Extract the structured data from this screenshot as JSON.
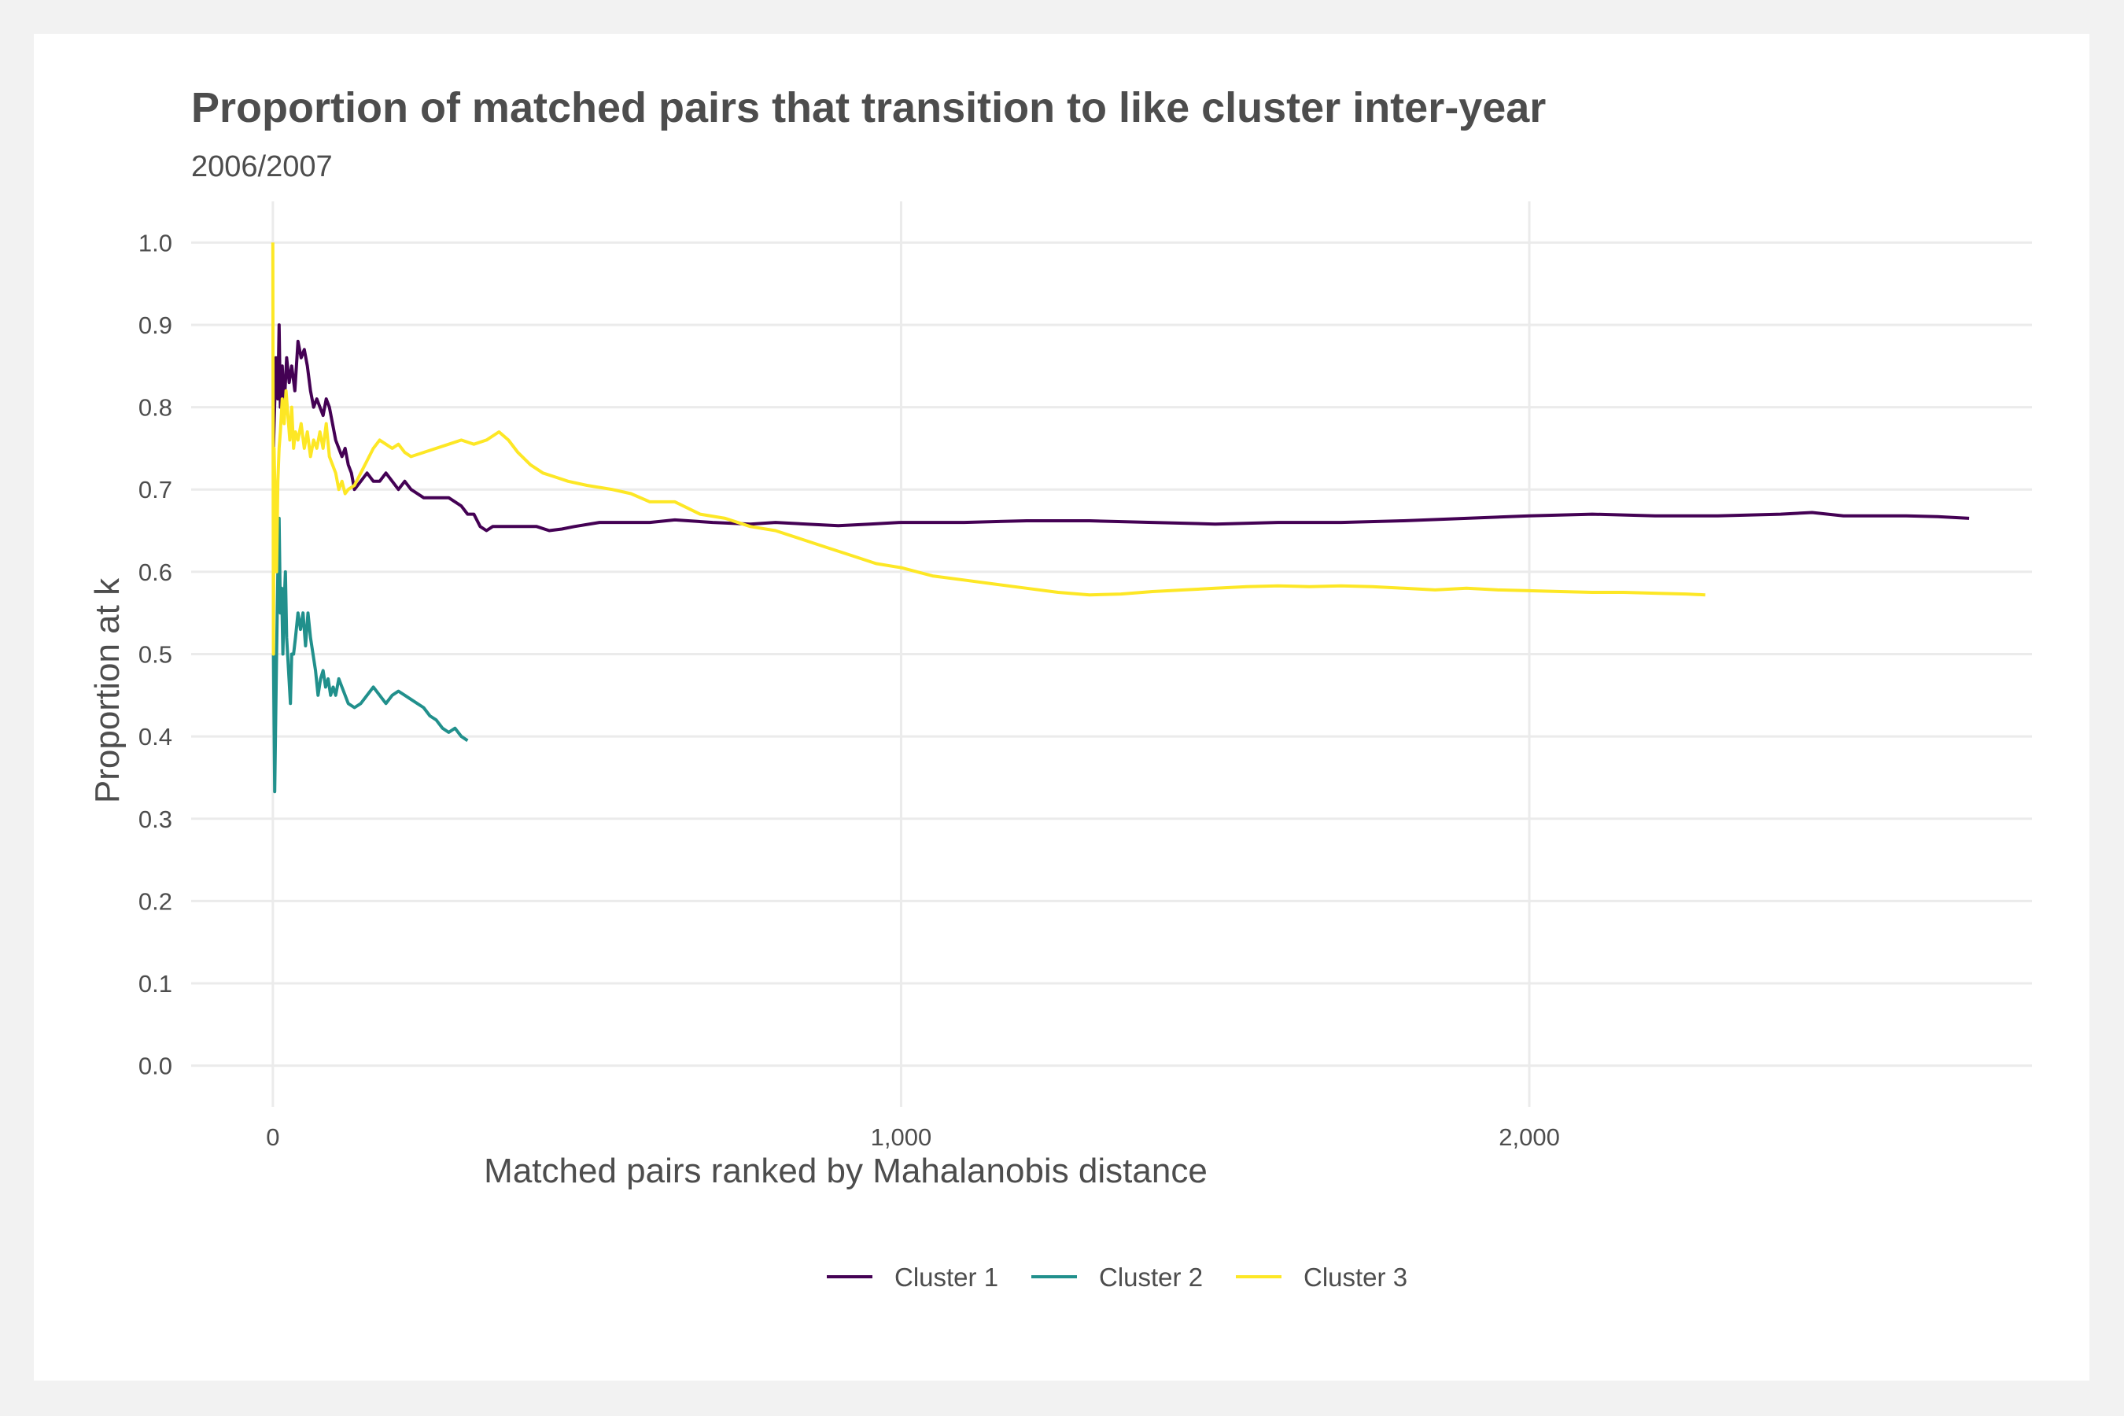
{
  "chart_data": {
    "type": "line",
    "title": "Proportion of matched pairs that transition to like cluster inter-year",
    "subtitle": "2006/2007",
    "xlabel": "Matched pairs ranked by Mahalanobis distance",
    "ylabel": "Proportion at k",
    "xlim": [
      -130,
      2800
    ],
    "ylim": [
      -0.05,
      1.05
    ],
    "x_ticks": [
      0,
      1000,
      2000
    ],
    "x_tick_labels": [
      "0",
      "1,000",
      "2,000"
    ],
    "y_ticks": [
      0.0,
      0.1,
      0.2,
      0.3,
      0.4,
      0.5,
      0.6,
      0.7,
      0.8,
      0.9,
      1.0
    ],
    "y_tick_labels": [
      "0.0",
      "0.1",
      "0.2",
      "0.3",
      "0.4",
      "0.5",
      "0.6",
      "0.7",
      "0.8",
      "0.9",
      "1.0"
    ],
    "grid": true,
    "legend_position": "bottom",
    "series": [
      {
        "name": "Cluster 1",
        "color": "#440154",
        "points": [
          [
            1,
            0.75
          ],
          [
            5,
            0.86
          ],
          [
            8,
            0.81
          ],
          [
            10,
            0.9
          ],
          [
            12,
            0.8
          ],
          [
            15,
            0.85
          ],
          [
            18,
            0.8
          ],
          [
            22,
            0.86
          ],
          [
            26,
            0.83
          ],
          [
            30,
            0.85
          ],
          [
            35,
            0.82
          ],
          [
            40,
            0.88
          ],
          [
            45,
            0.86
          ],
          [
            50,
            0.87
          ],
          [
            55,
            0.85
          ],
          [
            60,
            0.82
          ],
          [
            65,
            0.8
          ],
          [
            70,
            0.81
          ],
          [
            75,
            0.8
          ],
          [
            80,
            0.79
          ],
          [
            85,
            0.81
          ],
          [
            90,
            0.8
          ],
          [
            95,
            0.78
          ],
          [
            100,
            0.76
          ],
          [
            105,
            0.75
          ],
          [
            110,
            0.74
          ],
          [
            115,
            0.75
          ],
          [
            120,
            0.73
          ],
          [
            125,
            0.72
          ],
          [
            130,
            0.7
          ],
          [
            140,
            0.71
          ],
          [
            150,
            0.72
          ],
          [
            160,
            0.71
          ],
          [
            170,
            0.71
          ],
          [
            180,
            0.72
          ],
          [
            190,
            0.71
          ],
          [
            200,
            0.7
          ],
          [
            210,
            0.71
          ],
          [
            220,
            0.7
          ],
          [
            240,
            0.69
          ],
          [
            260,
            0.69
          ],
          [
            280,
            0.69
          ],
          [
            300,
            0.68
          ],
          [
            310,
            0.67
          ],
          [
            320,
            0.67
          ],
          [
            330,
            0.655
          ],
          [
            340,
            0.65
          ],
          [
            350,
            0.655
          ],
          [
            380,
            0.655
          ],
          [
            420,
            0.655
          ],
          [
            440,
            0.65
          ],
          [
            460,
            0.652
          ],
          [
            480,
            0.655
          ],
          [
            520,
            0.66
          ],
          [
            560,
            0.66
          ],
          [
            600,
            0.66
          ],
          [
            640,
            0.663
          ],
          [
            700,
            0.66
          ],
          [
            760,
            0.658
          ],
          [
            800,
            0.66
          ],
          [
            850,
            0.658
          ],
          [
            900,
            0.656
          ],
          [
            950,
            0.658
          ],
          [
            1000,
            0.66
          ],
          [
            1100,
            0.66
          ],
          [
            1200,
            0.662
          ],
          [
            1300,
            0.662
          ],
          [
            1400,
            0.66
          ],
          [
            1500,
            0.658
          ],
          [
            1600,
            0.66
          ],
          [
            1700,
            0.66
          ],
          [
            1800,
            0.662
          ],
          [
            1900,
            0.665
          ],
          [
            2000,
            0.668
          ],
          [
            2100,
            0.67
          ],
          [
            2200,
            0.668
          ],
          [
            2300,
            0.668
          ],
          [
            2400,
            0.67
          ],
          [
            2450,
            0.672
          ],
          [
            2500,
            0.668
          ],
          [
            2600,
            0.668
          ],
          [
            2650,
            0.667
          ],
          [
            2700,
            0.665
          ]
        ]
      },
      {
        "name": "Cluster 2",
        "color": "#21908C",
        "points": [
          [
            1,
            0.5
          ],
          [
            3,
            0.333
          ],
          [
            6,
            0.5
          ],
          [
            8,
            0.6
          ],
          [
            10,
            0.665
          ],
          [
            12,
            0.55
          ],
          [
            14,
            0.58
          ],
          [
            16,
            0.5
          ],
          [
            18,
            0.56
          ],
          [
            20,
            0.6
          ],
          [
            22,
            0.52
          ],
          [
            25,
            0.48
          ],
          [
            28,
            0.44
          ],
          [
            30,
            0.5
          ],
          [
            33,
            0.5
          ],
          [
            36,
            0.52
          ],
          [
            40,
            0.55
          ],
          [
            44,
            0.53
          ],
          [
            48,
            0.55
          ],
          [
            52,
            0.51
          ],
          [
            56,
            0.55
          ],
          [
            60,
            0.52
          ],
          [
            64,
            0.5
          ],
          [
            68,
            0.48
          ],
          [
            72,
            0.45
          ],
          [
            76,
            0.47
          ],
          [
            80,
            0.48
          ],
          [
            84,
            0.46
          ],
          [
            88,
            0.47
          ],
          [
            92,
            0.45
          ],
          [
            96,
            0.46
          ],
          [
            100,
            0.45
          ],
          [
            105,
            0.47
          ],
          [
            110,
            0.46
          ],
          [
            115,
            0.45
          ],
          [
            120,
            0.44
          ],
          [
            130,
            0.435
          ],
          [
            140,
            0.44
          ],
          [
            150,
            0.45
          ],
          [
            160,
            0.46
          ],
          [
            170,
            0.45
          ],
          [
            180,
            0.44
          ],
          [
            190,
            0.45
          ],
          [
            200,
            0.455
          ],
          [
            210,
            0.45
          ],
          [
            220,
            0.445
          ],
          [
            230,
            0.44
          ],
          [
            240,
            0.435
          ],
          [
            250,
            0.425
          ],
          [
            260,
            0.42
          ],
          [
            270,
            0.41
          ],
          [
            280,
            0.405
          ],
          [
            290,
            0.41
          ],
          [
            300,
            0.4
          ],
          [
            310,
            0.395
          ]
        ]
      },
      {
        "name": "Cluster 3",
        "color": "#FDE725",
        "points": [
          [
            0,
            1.0
          ],
          [
            1,
            0.5
          ],
          [
            2,
            0.75
          ],
          [
            4,
            0.67
          ],
          [
            6,
            0.6
          ],
          [
            8,
            0.71
          ],
          [
            10,
            0.75
          ],
          [
            12,
            0.77
          ],
          [
            15,
            0.81
          ],
          [
            18,
            0.78
          ],
          [
            21,
            0.82
          ],
          [
            24,
            0.79
          ],
          [
            27,
            0.76
          ],
          [
            30,
            0.8
          ],
          [
            33,
            0.75
          ],
          [
            36,
            0.77
          ],
          [
            40,
            0.76
          ],
          [
            45,
            0.78
          ],
          [
            50,
            0.75
          ],
          [
            55,
            0.77
          ],
          [
            60,
            0.74
          ],
          [
            65,
            0.76
          ],
          [
            70,
            0.75
          ],
          [
            75,
            0.77
          ],
          [
            80,
            0.75
          ],
          [
            85,
            0.78
          ],
          [
            90,
            0.74
          ],
          [
            95,
            0.73
          ],
          [
            100,
            0.72
          ],
          [
            105,
            0.7
          ],
          [
            110,
            0.71
          ],
          [
            115,
            0.695
          ],
          [
            120,
            0.7
          ],
          [
            130,
            0.705
          ],
          [
            140,
            0.72
          ],
          [
            150,
            0.735
          ],
          [
            160,
            0.75
          ],
          [
            170,
            0.76
          ],
          [
            180,
            0.755
          ],
          [
            190,
            0.75
          ],
          [
            200,
            0.755
          ],
          [
            210,
            0.745
          ],
          [
            220,
            0.74
          ],
          [
            240,
            0.745
          ],
          [
            260,
            0.75
          ],
          [
            280,
            0.755
          ],
          [
            300,
            0.76
          ],
          [
            320,
            0.755
          ],
          [
            340,
            0.76
          ],
          [
            360,
            0.77
          ],
          [
            375,
            0.76
          ],
          [
            390,
            0.745
          ],
          [
            410,
            0.73
          ],
          [
            430,
            0.72
          ],
          [
            450,
            0.715
          ],
          [
            470,
            0.71
          ],
          [
            500,
            0.705
          ],
          [
            540,
            0.7
          ],
          [
            570,
            0.695
          ],
          [
            600,
            0.685
          ],
          [
            640,
            0.685
          ],
          [
            680,
            0.67
          ],
          [
            720,
            0.665
          ],
          [
            760,
            0.655
          ],
          [
            800,
            0.65
          ],
          [
            840,
            0.64
          ],
          [
            880,
            0.63
          ],
          [
            920,
            0.62
          ],
          [
            960,
            0.61
          ],
          [
            1000,
            0.605
          ],
          [
            1050,
            0.595
          ],
          [
            1100,
            0.59
          ],
          [
            1150,
            0.585
          ],
          [
            1200,
            0.58
          ],
          [
            1250,
            0.575
          ],
          [
            1300,
            0.572
          ],
          [
            1350,
            0.573
          ],
          [
            1400,
            0.576
          ],
          [
            1450,
            0.578
          ],
          [
            1500,
            0.58
          ],
          [
            1550,
            0.582
          ],
          [
            1600,
            0.583
          ],
          [
            1650,
            0.582
          ],
          [
            1700,
            0.583
          ],
          [
            1750,
            0.582
          ],
          [
            1800,
            0.58
          ],
          [
            1850,
            0.578
          ],
          [
            1900,
            0.58
          ],
          [
            1950,
            0.578
          ],
          [
            2000,
            0.577
          ],
          [
            2050,
            0.576
          ],
          [
            2100,
            0.575
          ],
          [
            2150,
            0.575
          ],
          [
            2200,
            0.574
          ],
          [
            2250,
            0.573
          ],
          [
            2280,
            0.572
          ]
        ]
      }
    ]
  }
}
